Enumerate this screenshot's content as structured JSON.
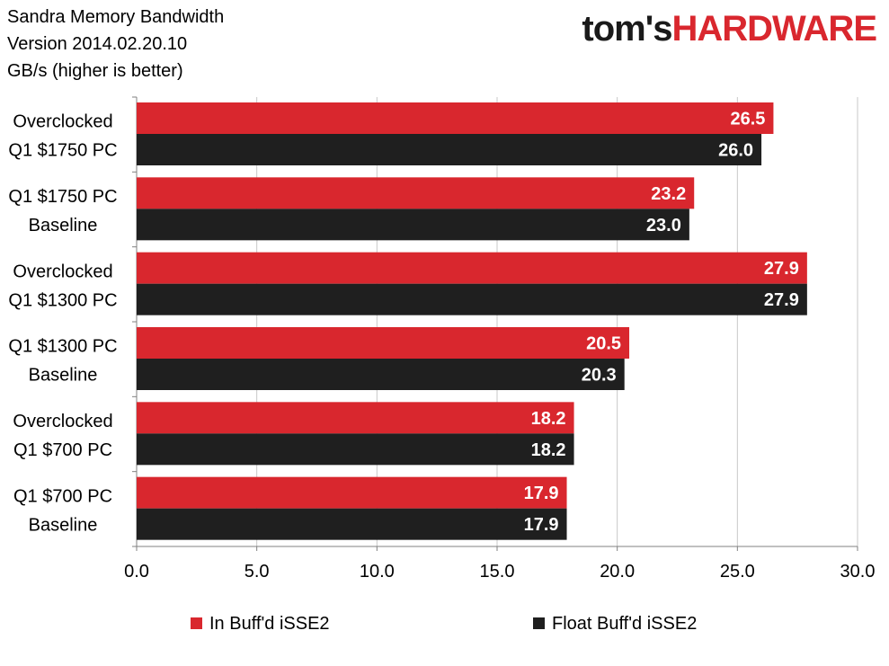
{
  "header": {
    "title": "Sandra Memory Bandwidth",
    "version": "Version 2014.02.20.10",
    "units": "GB/s (higher is better)"
  },
  "logo": {
    "part1": "tom's",
    "part2": "HARDWARE"
  },
  "colors": {
    "series1": "#d9272e",
    "series2": "#1f1f1f",
    "grid": "#c8c8c8",
    "axis": "#808080"
  },
  "chart_data": {
    "type": "bar",
    "orientation": "horizontal",
    "categories": [
      [
        "Overclocked",
        "Q1 $1750 PC"
      ],
      [
        "Q1 $1750 PC",
        "Baseline"
      ],
      [
        "Overclocked",
        "Q1 $1300 PC"
      ],
      [
        "Q1 $1300 PC",
        "Baseline"
      ],
      [
        "Overclocked",
        "Q1 $700 PC"
      ],
      [
        "Q1 $700 PC",
        "Baseline"
      ]
    ],
    "series": [
      {
        "name": "In Buff'd iSSE2",
        "values": [
          26.5,
          23.2,
          27.9,
          20.5,
          18.2,
          17.9
        ]
      },
      {
        "name": "Float Buff'd iSSE2",
        "values": [
          26.0,
          23.0,
          27.9,
          20.3,
          18.2,
          17.9
        ]
      }
    ],
    "xlim": [
      0,
      30
    ],
    "xticks": [
      "0.0",
      "5.0",
      "10.0",
      "15.0",
      "20.0",
      "25.0",
      "30.0"
    ],
    "grid": true,
    "legend": "bottom",
    "data_labels": true
  }
}
